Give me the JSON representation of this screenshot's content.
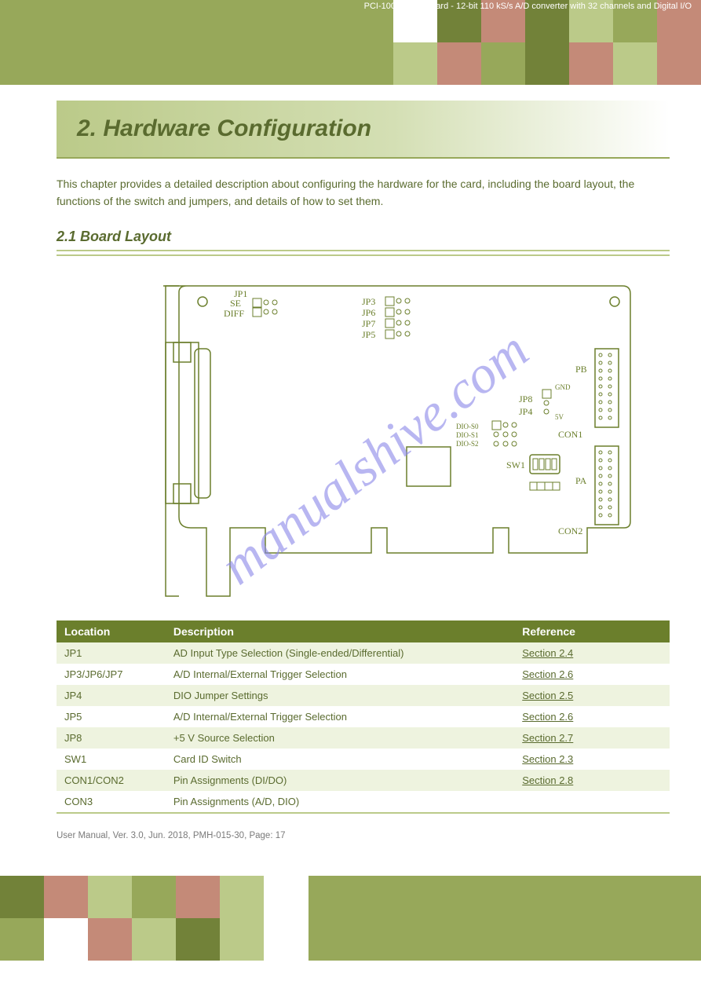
{
  "document": {
    "title": "PCI-1002 Series Card - 12-bit 110 kS/s A/D converter with 32 channels and Digital I/O",
    "header_squares_colors_top": [
      [
        "c-white",
        "c-dark",
        "c-rose",
        "c-dark",
        "c-light",
        "c-med",
        "c-rose"
      ],
      [
        "c-light",
        "c-rose",
        "c-med",
        "c-dark",
        "c-rose",
        "c-light",
        "c-rose"
      ]
    ],
    "header_squares_colors_bottom": [
      [
        "c-dark",
        "c-rose",
        "c-light",
        "c-med",
        "c-rose",
        "c-light"
      ],
      [
        "c-med",
        "c-white",
        "c-rose",
        "c-light",
        "c-dark",
        "c-light"
      ]
    ]
  },
  "section": {
    "banner_title": "2. Hardware Configuration",
    "intro": "This chapter provides a detailed description about configuring the hardware for the card, including the board layout, the functions of the switch and jumpers, and details of how to set them."
  },
  "subsection": {
    "title": "2.1 Board Layout"
  },
  "diagram": {
    "labels": {
      "jp1_se": "SE",
      "jp1_diff": "DIFF",
      "jp1": "JP1",
      "jp3": "JP3",
      "jp6": "JP6",
      "jp7": "JP7",
      "jp5": "JP5",
      "jp8": "JP8",
      "jp4": "JP4",
      "gnd": "GND",
      "five_v": "5V",
      "sw1": "SW1",
      "dio_s0": "DIO-S0",
      "dio_s1": "DIO-S1",
      "dio_s2": "DIO-S2",
      "pb": "PB",
      "pa": "PA",
      "con1": "CON1",
      "con2": "CON2"
    },
    "watermark": "manualshive.com"
  },
  "table": {
    "columns": [
      "Location",
      "Description",
      "Reference"
    ],
    "rows": [
      {
        "loc": "JP1",
        "desc": "AD Input Type Selection (Single-ended/Differential)",
        "ref": "Section 2.4"
      },
      {
        "loc": "JP3/JP6/JP7",
        "desc": "A/D Internal/External Trigger Selection",
        "ref": "Section 2.6"
      },
      {
        "loc": "JP4",
        "desc": "DIO Jumper Settings",
        "ref": "Section 2.5"
      },
      {
        "loc": "JP5",
        "desc": "A/D Internal/External Trigger Selection",
        "ref": "Section 2.6"
      },
      {
        "loc": "JP8",
        "desc": "+5 V Source Selection",
        "ref": "Section 2.7"
      },
      {
        "loc": "SW1",
        "desc": "Card ID Switch",
        "ref": "Section 2.3"
      },
      {
        "loc": "CON1/CON2",
        "desc": "Pin Assignments (DI/DO)",
        "ref": "Section 2.8"
      },
      {
        "loc": "CON3",
        "desc": "Pin Assignments (A/D, DIO)",
        "ref": ""
      }
    ]
  },
  "footer": {
    "note": "User Manual, Ver. 3.0, Jun. 2018, PMH-015-30, Page: 17",
    "page": ""
  }
}
